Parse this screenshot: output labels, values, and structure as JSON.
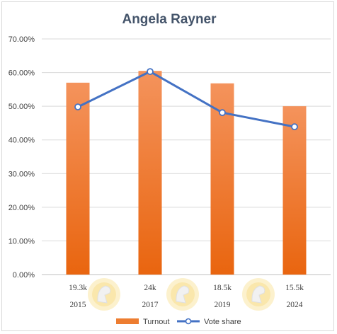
{
  "chart_data": {
    "type": "bar",
    "title": "Angela Rayner",
    "categories": [
      "2015",
      "2017",
      "2019",
      "2024"
    ],
    "category_sublabels": [
      "19.3k",
      "24k",
      "18.5k",
      "15.5k"
    ],
    "series": [
      {
        "name": "Turnout",
        "type": "bar",
        "values": [
          0.57,
          0.605,
          0.568,
          0.5
        ],
        "color": "#ed7d31"
      },
      {
        "name": "Vote share",
        "type": "line",
        "values": [
          0.498,
          0.603,
          0.481,
          0.439
        ],
        "color": "#4472c4"
      }
    ],
    "yticks": [
      "0.00%",
      "10.00%",
      "20.00%",
      "30.00%",
      "40.00%",
      "50.00%",
      "60.00%",
      "70.00%"
    ],
    "ylim": [
      0,
      0.7
    ],
    "grid": true,
    "legend_position": "bottom",
    "xlabel": "",
    "ylabel": ""
  }
}
